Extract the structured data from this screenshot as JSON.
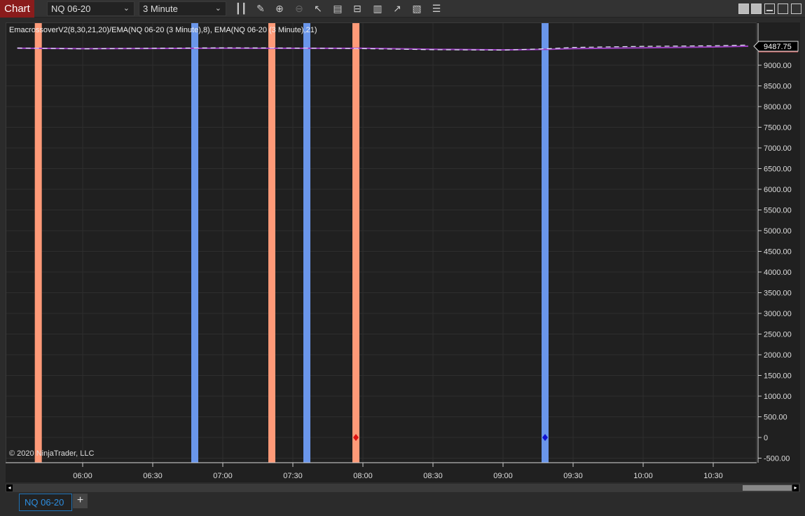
{
  "toolbar": {
    "chart_label": "Chart",
    "instrument": "NQ 06-20",
    "interval": "3 Minute",
    "tools": [
      "bar-type-icon",
      "pencil-draw-icon",
      "zoom-in-icon",
      "zoom-out-icon",
      "pointer-icon",
      "data-box-icon",
      "properties-icon",
      "indicators-icon",
      "strategies-icon",
      "chart-trader-icon",
      "list-icon"
    ]
  },
  "legend": "EmacrossoverV2(8,30,21,20)/EMA(NQ 06-20 (3 Minute),8), EMA(NQ 06-20 (3 Minute),21)",
  "copyright": "© 2020 NinjaTrader, LLC",
  "last_price": "9487.75",
  "tabs": [
    {
      "label": "NQ 06-20",
      "active": true
    }
  ],
  "add_tab_label": "+",
  "chart_data": {
    "type": "line",
    "y_ticks": [
      9000,
      8500,
      8000,
      7500,
      7000,
      6500,
      6000,
      5500,
      5000,
      4500,
      4000,
      3500,
      3000,
      2500,
      2000,
      1500,
      1000,
      500,
      0,
      -500
    ],
    "y_tick_labels": [
      "9000.00",
      "8500.00",
      "8000.00",
      "7500.00",
      "7000.00",
      "6500.00",
      "6000.00",
      "5500.00",
      "5000.00",
      "4500.00",
      "4000.00",
      "3500.00",
      "3000.00",
      "2500.00",
      "2000.00",
      "1500.00",
      "1000.00",
      "500.00",
      "0",
      "-500.00"
    ],
    "x_tick_labels": [
      "06:00",
      "06:30",
      "07:00",
      "07:30",
      "08:00",
      "08:30",
      "09:00",
      "09:30",
      "10:00",
      "10:30"
    ],
    "x_ticks_min": [
      360,
      390,
      420,
      450,
      480,
      510,
      540,
      570,
      600,
      630
    ],
    "series": [
      {
        "color": "#9b3fc0",
        "x": [
          "05:32",
          "06:00",
          "06:30",
          "07:00",
          "07:30",
          "08:00",
          "08:30",
          "09:00",
          "09:20",
          "09:30",
          "10:00",
          "10:30",
          "10:45"
        ],
        "y": [
          9410,
          9400,
          9405,
          9410,
          9408,
          9410,
          9385,
          9370,
          9385,
          9400,
          9420,
          9440,
          9460
        ]
      },
      {
        "color": "#e8e8ff",
        "dashed": true,
        "x": [
          "05:32",
          "06:00",
          "06:30",
          "07:00",
          "07:30",
          "08:00",
          "08:30",
          "09:00",
          "09:20",
          "09:30",
          "10:00",
          "10:30",
          "10:45"
        ],
        "y": [
          9415,
          9395,
          9410,
          9420,
          9415,
          9400,
          9375,
          9365,
          9400,
          9430,
          9455,
          9470,
          9487.75
        ]
      }
    ],
    "signal_bars": [
      {
        "time": "05:41",
        "color": "#ff9a78"
      },
      {
        "time": "06:48",
        "color": "#6a96ea"
      },
      {
        "time": "07:21",
        "color": "#ff9a78"
      },
      {
        "time": "07:36",
        "color": "#6a96ea"
      },
      {
        "time": "07:57",
        "color": "#ff9a78"
      },
      {
        "time": "09:18",
        "color": "#6a96ea"
      }
    ],
    "markers": [
      {
        "time": "07:57",
        "value": 0,
        "color": "#e01010"
      },
      {
        "time": "09:18",
        "value": 0,
        "color": "#1010d0"
      }
    ],
    "grid": true
  }
}
